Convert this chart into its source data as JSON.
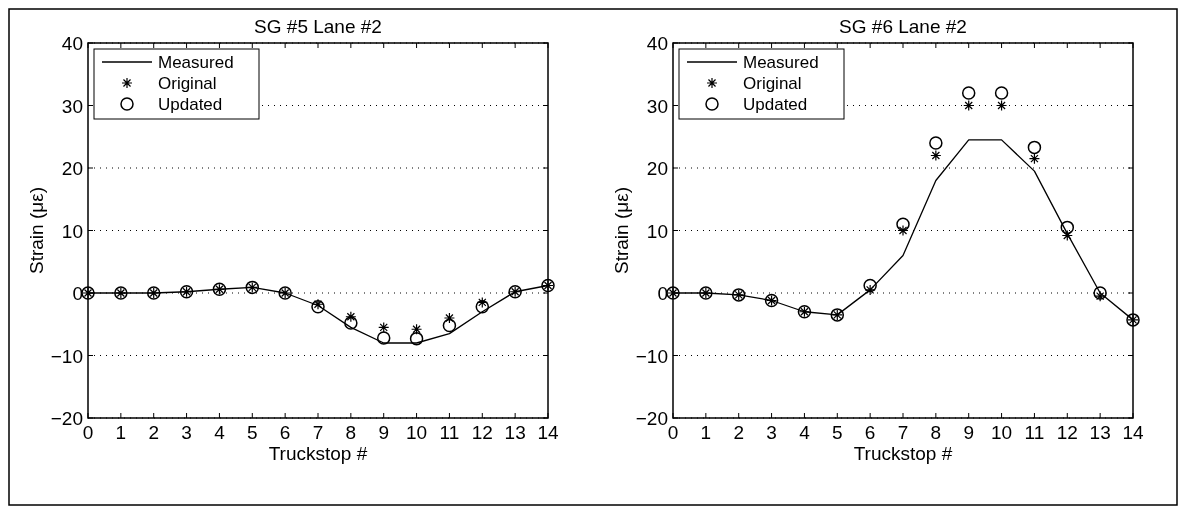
{
  "chart_data": [
    {
      "type": "line",
      "title": "SG #5 Lane #2",
      "xlabel": "Truckstop #",
      "ylabel": "Strain (με)",
      "x": [
        0,
        1,
        2,
        3,
        4,
        5,
        6,
        7,
        8,
        9,
        10,
        11,
        12,
        13,
        14
      ],
      "xlim": [
        0,
        14
      ],
      "xticks": [
        0,
        1,
        2,
        3,
        4,
        5,
        6,
        7,
        8,
        9,
        10,
        11,
        12,
        13,
        14
      ],
      "ylim": [
        -20,
        40
      ],
      "yticks": [
        -20,
        -10,
        0,
        10,
        20,
        30,
        40
      ],
      "grid": "y",
      "legend": "top left",
      "series": [
        {
          "name": "Measured",
          "color": "#000000",
          "marker": "none",
          "line_style": "solid",
          "values": [
            0,
            0,
            0,
            0.2,
            0.6,
            0.9,
            0,
            -2,
            -5.5,
            -8,
            -8,
            -6.5,
            -3,
            0.2,
            1.2
          ]
        },
        {
          "name": "Original",
          "type": "scatter",
          "color": "#000000",
          "marker": "cross",
          "values": [
            0,
            0,
            0,
            0.2,
            0.6,
            0.9,
            0,
            -1.8,
            -3.8,
            -5.5,
            -5.8,
            -4,
            -1.5,
            0.2,
            1.2
          ]
        },
        {
          "name": "Updated",
          "type": "scatter",
          "color": "#000000",
          "marker": "circle",
          "values": [
            0,
            0,
            0,
            0.2,
            0.6,
            0.9,
            0,
            -2.2,
            -4.8,
            -7.2,
            -7.3,
            -5.2,
            -2.2,
            0.2,
            1.2
          ]
        }
      ]
    },
    {
      "type": "line",
      "title": "SG #6 Lane #2",
      "xlabel": "Truckstop #",
      "ylabel": "Strain (με)",
      "x": [
        0,
        1,
        2,
        3,
        4,
        5,
        6,
        7,
        8,
        9,
        10,
        11,
        12,
        13,
        14
      ],
      "xlim": [
        0,
        14
      ],
      "xticks": [
        0,
        1,
        2,
        3,
        4,
        5,
        6,
        7,
        8,
        9,
        10,
        11,
        12,
        13,
        14
      ],
      "ylim": [
        -20,
        40
      ],
      "yticks": [
        -20,
        -10,
        0,
        10,
        20,
        30,
        40
      ],
      "grid": "y",
      "legend": "top left",
      "series": [
        {
          "name": "Measured",
          "color": "#000000",
          "marker": "none",
          "line_style": "solid",
          "values": [
            0,
            0,
            -0.3,
            -1.2,
            -3,
            -3.5,
            0.5,
            6,
            18,
            24.5,
            24.5,
            19.5,
            9.5,
            0,
            -4.3
          ]
        },
        {
          "name": "Original",
          "type": "scatter",
          "color": "#000000",
          "marker": "cross",
          "values": [
            0,
            0,
            -0.3,
            -1.2,
            -3,
            -3.5,
            0.5,
            10,
            22,
            30,
            30,
            21.5,
            9.2,
            -0.5,
            -4.3
          ]
        },
        {
          "name": "Updated",
          "type": "scatter",
          "color": "#000000",
          "marker": "circle",
          "values": [
            0,
            0,
            -0.3,
            -1.2,
            -3,
            -3.5,
            1.2,
            11,
            24,
            32,
            32,
            23.3,
            10.5,
            0,
            -4.3
          ]
        }
      ]
    }
  ]
}
